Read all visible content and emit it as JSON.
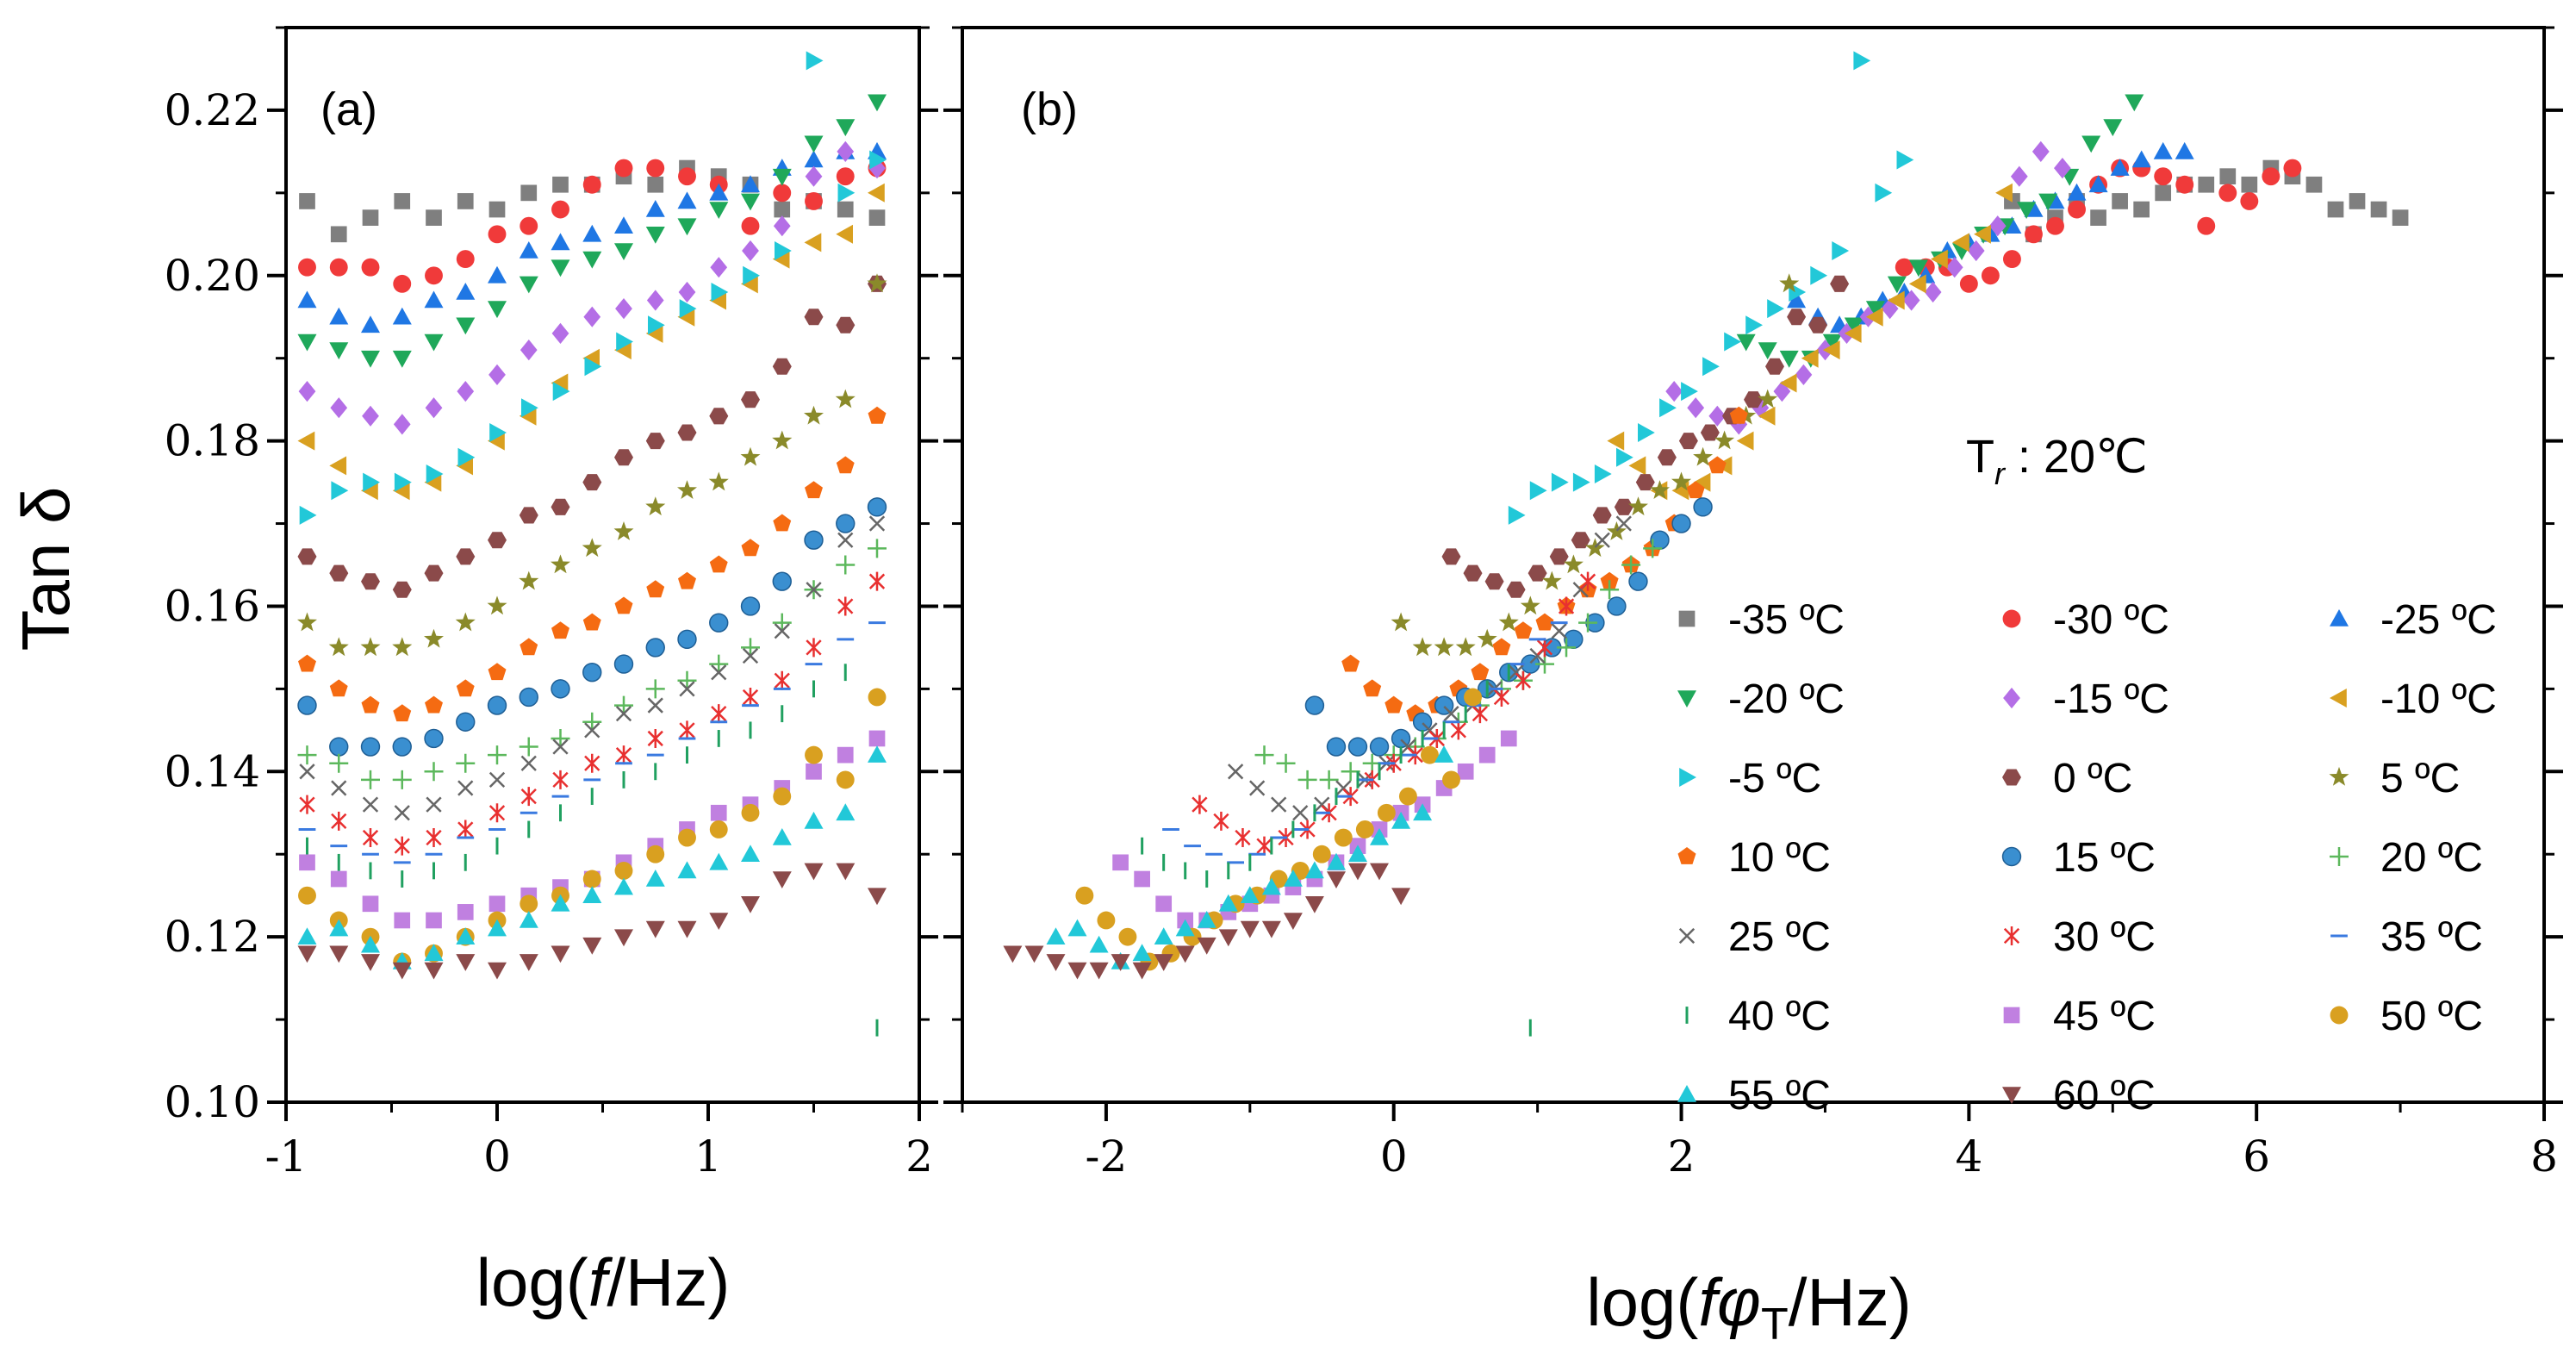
{
  "chart_data": [
    {
      "type": "scatter",
      "panel_label": "(a)",
      "xlabel": "log(f/Hz)",
      "ylabel": "Tan δ",
      "xlim": [
        -1,
        2
      ],
      "ylim": [
        0.1,
        0.23
      ],
      "x_ticks": [
        -1,
        0,
        1,
        2
      ],
      "x_tick_labels": [
        "-1",
        "0",
        "1",
        "2"
      ],
      "y_ticks": [
        0.1,
        0.12,
        0.14,
        0.16,
        0.18,
        0.2,
        0.22
      ],
      "y_tick_labels": [
        "0.10",
        "0.12",
        "0.14",
        "0.16",
        "0.18",
        "0.20",
        "0.22"
      ],
      "x": [
        -0.9,
        -0.75,
        -0.6,
        -0.45,
        -0.3,
        -0.15,
        0.0,
        0.15,
        0.3,
        0.45,
        0.6,
        0.75,
        0.9,
        1.05,
        1.2,
        1.35,
        1.5,
        1.65,
        1.8
      ],
      "series": [
        {
          "name": "-35 ºC",
          "values": [
            0.209,
            0.205,
            0.207,
            0.209,
            0.207,
            0.209,
            0.208,
            0.21,
            0.211,
            0.211,
            0.212,
            0.211,
            0.213,
            0.212,
            0.211,
            0.208,
            0.209,
            0.208,
            0.207
          ]
        },
        {
          "name": "-30 ºC",
          "values": [
            0.201,
            0.201,
            0.201,
            0.199,
            0.2,
            0.202,
            0.205,
            0.206,
            0.208,
            0.211,
            0.213,
            0.213,
            0.212,
            0.211,
            0.206,
            0.21,
            0.209,
            0.212,
            0.213
          ]
        },
        {
          "name": "-25 ºC",
          "values": [
            0.197,
            0.195,
            0.194,
            0.195,
            0.197,
            0.198,
            0.2,
            0.203,
            0.204,
            0.205,
            0.206,
            0.208,
            0.209,
            0.21,
            0.211,
            0.213,
            0.214,
            0.215,
            0.215
          ]
        },
        {
          "name": "-20 ºC",
          "values": [
            0.192,
            0.191,
            0.19,
            0.19,
            0.192,
            0.194,
            0.196,
            0.199,
            0.201,
            0.202,
            0.203,
            0.205,
            0.206,
            0.208,
            0.209,
            0.212,
            0.216,
            0.218,
            0.221
          ]
        },
        {
          "name": "-15 ºC",
          "values": [
            0.186,
            0.184,
            0.183,
            0.182,
            0.184,
            0.186,
            0.188,
            0.191,
            0.193,
            0.195,
            0.196,
            0.197,
            0.198,
            0.201,
            0.203,
            0.206,
            0.212,
            0.215,
            0.213
          ]
        },
        {
          "name": "-10 ºC",
          "values": [
            0.18,
            0.177,
            0.174,
            0.174,
            0.175,
            0.177,
            0.18,
            0.183,
            0.187,
            0.19,
            0.191,
            0.193,
            0.195,
            0.197,
            0.199,
            0.202,
            0.204,
            0.205,
            0.21
          ]
        },
        {
          "name": "-5 ºC",
          "values": [
            0.171,
            0.174,
            0.175,
            0.175,
            0.176,
            0.178,
            0.181,
            0.184,
            0.186,
            0.189,
            0.192,
            0.194,
            0.196,
            0.198,
            0.2,
            0.203,
            0.226,
            0.21,
            0.214
          ]
        },
        {
          "name": "0 ºC",
          "values": [
            0.166,
            0.164,
            0.163,
            0.162,
            0.164,
            0.166,
            0.168,
            0.171,
            0.172,
            0.175,
            0.178,
            0.18,
            0.181,
            0.183,
            0.185,
            0.189,
            0.195,
            0.194,
            0.199
          ]
        },
        {
          "name": "5 ºC",
          "values": [
            0.158,
            0.155,
            0.155,
            0.155,
            0.156,
            0.158,
            0.16,
            0.163,
            0.165,
            0.167,
            0.169,
            0.172,
            0.174,
            0.175,
            0.178,
            0.18,
            0.183,
            0.185,
            0.199
          ]
        },
        {
          "name": "10 ºC",
          "values": [
            0.153,
            0.15,
            0.148,
            0.147,
            0.148,
            0.15,
            0.152,
            0.155,
            0.157,
            0.158,
            0.16,
            0.162,
            0.163,
            0.165,
            0.167,
            0.17,
            0.174,
            0.177,
            0.183
          ]
        },
        {
          "name": "15 ºC",
          "values": [
            0.148,
            0.143,
            0.143,
            0.143,
            0.144,
            0.146,
            0.148,
            0.149,
            0.15,
            0.152,
            0.153,
            0.155,
            0.156,
            0.158,
            0.16,
            0.163,
            0.168,
            0.17,
            0.172
          ]
        },
        {
          "name": "20 ºC",
          "values": [
            0.142,
            0.141,
            0.139,
            0.139,
            0.14,
            0.141,
            0.142,
            0.143,
            0.144,
            0.146,
            0.148,
            0.15,
            0.151,
            0.153,
            0.155,
            0.158,
            0.162,
            0.165,
            0.167
          ]
        },
        {
          "name": "25 ºC",
          "values": [
            0.14,
            0.138,
            0.136,
            0.135,
            0.136,
            0.138,
            0.139,
            0.141,
            0.143,
            0.145,
            0.147,
            0.148,
            0.15,
            0.152,
            0.154,
            0.157,
            0.162,
            0.168,
            0.17
          ]
        },
        {
          "name": "30 ºC",
          "values": [
            0.136,
            0.134,
            0.132,
            0.131,
            0.132,
            0.133,
            0.135,
            0.137,
            0.139,
            0.141,
            0.142,
            0.144,
            0.145,
            0.147,
            0.149,
            0.151,
            0.155,
            0.16,
            0.163
          ]
        },
        {
          "name": "35 ºC",
          "values": [
            0.133,
            0.131,
            0.13,
            0.129,
            0.13,
            0.132,
            0.133,
            0.135,
            0.137,
            0.139,
            0.141,
            0.142,
            0.144,
            0.146,
            0.148,
            0.15,
            0.153,
            0.156,
            0.158
          ]
        },
        {
          "name": "40 ºC",
          "values": [
            0.131,
            0.129,
            0.128,
            0.127,
            0.128,
            0.129,
            0.131,
            0.133,
            0.135,
            0.137,
            0.139,
            0.14,
            0.142,
            0.144,
            0.145,
            0.147,
            0.15,
            0.152,
            0.109
          ]
        },
        {
          "name": "45 ºC",
          "values": [
            0.129,
            0.127,
            0.124,
            0.122,
            0.122,
            0.123,
            0.124,
            0.125,
            0.126,
            0.127,
            0.129,
            0.131,
            0.133,
            0.135,
            0.136,
            0.138,
            0.14,
            0.142,
            0.144
          ]
        },
        {
          "name": "50 ºC",
          "values": [
            0.125,
            0.122,
            0.12,
            0.117,
            0.118,
            0.12,
            0.122,
            0.124,
            0.125,
            0.127,
            0.128,
            0.13,
            0.132,
            0.133,
            0.135,
            0.137,
            0.142,
            0.139,
            0.149
          ]
        },
        {
          "name": "55 ºC",
          "values": [
            0.12,
            0.121,
            0.119,
            0.117,
            0.118,
            0.12,
            0.121,
            0.122,
            0.124,
            0.125,
            0.126,
            0.127,
            0.128,
            0.129,
            0.13,
            0.132,
            0.134,
            0.135,
            0.142
          ]
        },
        {
          "name": "60 ºC",
          "values": [
            0.118,
            0.118,
            0.117,
            0.116,
            0.116,
            0.117,
            0.116,
            0.117,
            0.118,
            0.119,
            0.12,
            0.121,
            0.121,
            0.122,
            0.124,
            0.127,
            0.128,
            0.128,
            0.125
          ]
        }
      ]
    },
    {
      "type": "scatter",
      "panel_label": "(b)",
      "xlabel": "log(fφT/Hz)",
      "ylabel": "",
      "xlim": [
        -3,
        8
      ],
      "ylim": [
        0.1,
        0.23
      ],
      "x_ticks": [
        -2,
        0,
        2,
        4,
        6,
        8
      ],
      "x_tick_labels": [
        "-2",
        "0",
        "2",
        "4",
        "6",
        "8"
      ],
      "annotation": "Tr : 20℃",
      "legend_position": "bottom-right",
      "shift_factors_log_aT": {
        "-35 ºC": 5.2,
        "-30 ºC": 4.45,
        "-25 ºC": 3.7,
        "-20 ºC": 3.35,
        "-15 ºC": 2.85,
        "-10 ºC": 2.45,
        "-5 ºC": 1.75,
        "0 ºC": 1.3,
        "5 ºC": 0.95,
        "10 ºC": 0.6,
        "15 ºC": 0.35,
        "20 ºC": 0.0,
        "25 ºC": -0.2,
        "30 ºC": -0.45,
        "35 ºC": -0.65,
        "40 ºC": -0.85,
        "45 ºC": -1.0,
        "50 ºC": -1.25,
        "55 ºC": -1.45,
        "60 ºC": -1.75
      },
      "x_source": "panel (a) x plus shift_factors_log_aT",
      "values_source": "panel (a) series values"
    }
  ],
  "legend": [
    {
      "label": "-35 ºC",
      "marker": "square",
      "color": "#7f7f7f"
    },
    {
      "label": "-30 ºC",
      "marker": "circle",
      "color": "#f03a3a"
    },
    {
      "label": "-25 ºC",
      "marker": "triangle-up",
      "color": "#1f77e4"
    },
    {
      "label": "-20 ºC",
      "marker": "triangle-down",
      "color": "#1fa85a"
    },
    {
      "label": "-15 ºC",
      "marker": "diamond",
      "color": "#b46ee6"
    },
    {
      "label": "-10 ºC",
      "marker": "triangle-left",
      "color": "#d9a020"
    },
    {
      "label": "-5 ºC",
      "marker": "triangle-right",
      "color": "#22c8d8"
    },
    {
      "label": "0 ºC",
      "marker": "hexagon",
      "color": "#8b4a4a"
    },
    {
      "label": "5 ºC",
      "marker": "star",
      "color": "#8a8a2a"
    },
    {
      "label": "10 ºC",
      "marker": "pentagon",
      "color": "#f56b12"
    },
    {
      "label": "15 ºC",
      "marker": "sphere",
      "color": "#3a8fd0"
    },
    {
      "label": "20 ºC",
      "marker": "plus",
      "color": "#5cb85c"
    },
    {
      "label": "25 ºC",
      "marker": "cross",
      "color": "#666666"
    },
    {
      "label": "30 ºC",
      "marker": "asterisk",
      "color": "#e83030"
    },
    {
      "label": "35 ºC",
      "marker": "hline",
      "color": "#3a7ae0"
    },
    {
      "label": "40 ºC",
      "marker": "vline",
      "color": "#20a060"
    },
    {
      "label": "45 ºC",
      "marker": "square",
      "color": "#c080e0"
    },
    {
      "label": "50 ºC",
      "marker": "circle",
      "color": "#d9a020"
    },
    {
      "label": "55 ºC",
      "marker": "triangle-up",
      "color": "#22c8d8"
    },
    {
      "label": "60 ºC",
      "marker": "triangle-down",
      "color": "#8b4a4a"
    }
  ],
  "axis_titles": {
    "left_y": "Tan δ",
    "a_x_prefix": "log(",
    "a_x_italic": "f",
    "a_x_suffix": "/Hz)",
    "b_x_prefix": "log(",
    "b_x_italic": "fφ",
    "b_x_sub": "T",
    "b_x_suffix": "/Hz)"
  },
  "annotation": {
    "prefix": "T",
    "sub": "r",
    "suffix": " : 20℃"
  },
  "colors": {
    "axis": "#000000",
    "background": "#ffffff"
  }
}
